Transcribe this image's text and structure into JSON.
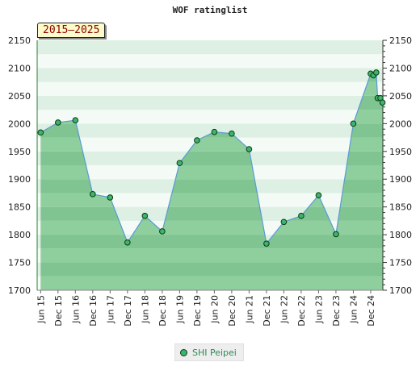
{
  "chart_data": {
    "type": "area",
    "title": "WOF ratinglist",
    "period_label": "2015–2025",
    "ylim": [
      1700,
      2150
    ],
    "yticks": [
      1700,
      1750,
      1800,
      1850,
      1900,
      1950,
      2000,
      2050,
      2100,
      2150
    ],
    "xlim": [
      2015.4,
      2025.35
    ],
    "xticks": [
      {
        "label": "Jun 15",
        "x": 2015.5
      },
      {
        "label": "Dec 15",
        "x": 2016.0
      },
      {
        "label": "Jun 16",
        "x": 2016.5
      },
      {
        "label": "Dec 16",
        "x": 2017.0
      },
      {
        "label": "Jun 17",
        "x": 2017.5
      },
      {
        "label": "Dec 17",
        "x": 2018.0
      },
      {
        "label": "Jun 18",
        "x": 2018.5
      },
      {
        "label": "Dec 18",
        "x": 2019.0
      },
      {
        "label": "Jun 19",
        "x": 2019.5
      },
      {
        "label": "Dec 19",
        "x": 2020.0
      },
      {
        "label": "Jun 20",
        "x": 2020.5
      },
      {
        "label": "Dec 20",
        "x": 2021.0
      },
      {
        "label": "Jun 21",
        "x": 2021.5
      },
      {
        "label": "Dec 21",
        "x": 2022.0
      },
      {
        "label": "Jun 22",
        "x": 2022.5
      },
      {
        "label": "Dec 22",
        "x": 2023.0
      },
      {
        "label": "Jun 23",
        "x": 2023.5
      },
      {
        "label": "Dec 23",
        "x": 2024.0
      },
      {
        "label": "Jun 24",
        "x": 2024.5
      },
      {
        "label": "Dec 24",
        "x": 2025.0
      }
    ],
    "series": [
      {
        "name": "SHI Peipei",
        "points": [
          {
            "x": 2015.5,
            "y": 1984
          },
          {
            "x": 2016.0,
            "y": 2002
          },
          {
            "x": 2016.5,
            "y": 2006
          },
          {
            "x": 2017.0,
            "y": 1873
          },
          {
            "x": 2017.5,
            "y": 1867
          },
          {
            "x": 2018.0,
            "y": 1786
          },
          {
            "x": 2018.5,
            "y": 1834
          },
          {
            "x": 2019.0,
            "y": 1806
          },
          {
            "x": 2019.5,
            "y": 1929
          },
          {
            "x": 2020.0,
            "y": 1970
          },
          {
            "x": 2020.5,
            "y": 1985
          },
          {
            "x": 2021.0,
            "y": 1982
          },
          {
            "x": 2021.5,
            "y": 1954
          },
          {
            "x": 2022.0,
            "y": 1784
          },
          {
            "x": 2022.5,
            "y": 1823
          },
          {
            "x": 2023.0,
            "y": 1834
          },
          {
            "x": 2023.5,
            "y": 1871
          },
          {
            "x": 2024.0,
            "y": 1801
          },
          {
            "x": 2024.5,
            "y": 2000
          },
          {
            "x": 2025.0,
            "y": 2090
          },
          {
            "x": 2025.08,
            "y": 2087
          },
          {
            "x": 2025.16,
            "y": 2092
          },
          {
            "x": 2025.2,
            "y": 2046
          },
          {
            "x": 2025.28,
            "y": 2046
          },
          {
            "x": 2025.34,
            "y": 2038
          }
        ]
      }
    ],
    "grid": true,
    "legend_position": "bottom-center"
  }
}
